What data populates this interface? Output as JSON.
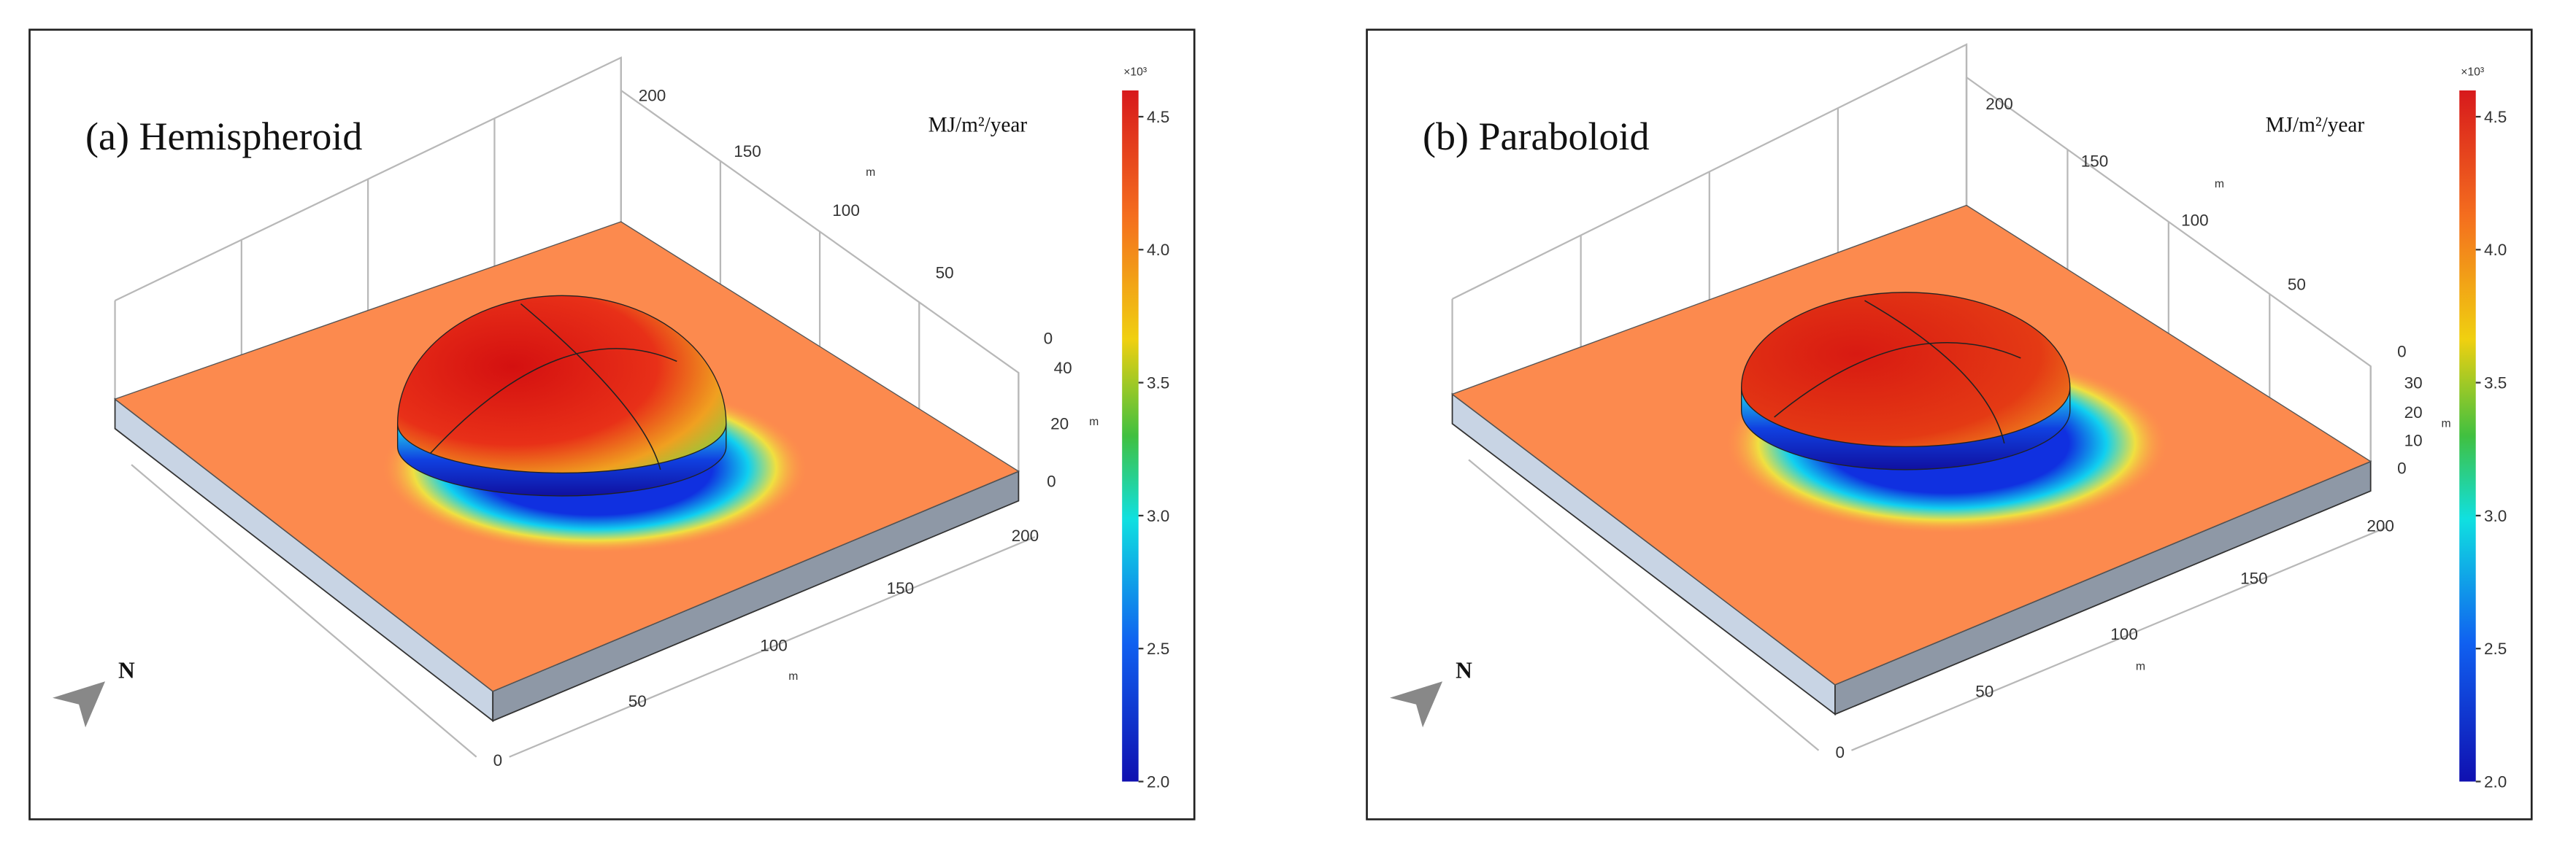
{
  "panels": [
    {
      "title": "(a) Hemispheroid",
      "unit": "MJ/m²/year",
      "colorbar": {
        "multiplier": "×10³",
        "ticks": [
          "4.5",
          "4.0",
          "3.5",
          "3.0",
          "2.5",
          "2.0"
        ]
      },
      "x_axis": {
        "ticks": [
          "0",
          "50",
          "100",
          "150",
          "200"
        ],
        "unit": "m"
      },
      "y_axis": {
        "ticks": [
          "200",
          "150",
          "100",
          "50",
          "0"
        ],
        "unit": "m"
      },
      "z_axis": {
        "ticks": [
          "40",
          "20",
          "0"
        ],
        "unit": "m"
      },
      "compass": "N"
    },
    {
      "title": "(b) Paraboloid",
      "unit": "MJ/m²/year",
      "colorbar": {
        "multiplier": "×10³",
        "ticks": [
          "4.5",
          "4.0",
          "3.5",
          "3.0",
          "2.5",
          "2.0"
        ]
      },
      "x_axis": {
        "ticks": [
          "0",
          "50",
          "100",
          "150",
          "200"
        ],
        "unit": "m"
      },
      "y_axis": {
        "ticks": [
          "200",
          "150",
          "100",
          "50",
          "0"
        ],
        "unit": "m"
      },
      "z_axis": {
        "ticks": [
          "30",
          "20",
          "10",
          "0"
        ],
        "unit": "m"
      },
      "compass": "N"
    }
  ]
}
